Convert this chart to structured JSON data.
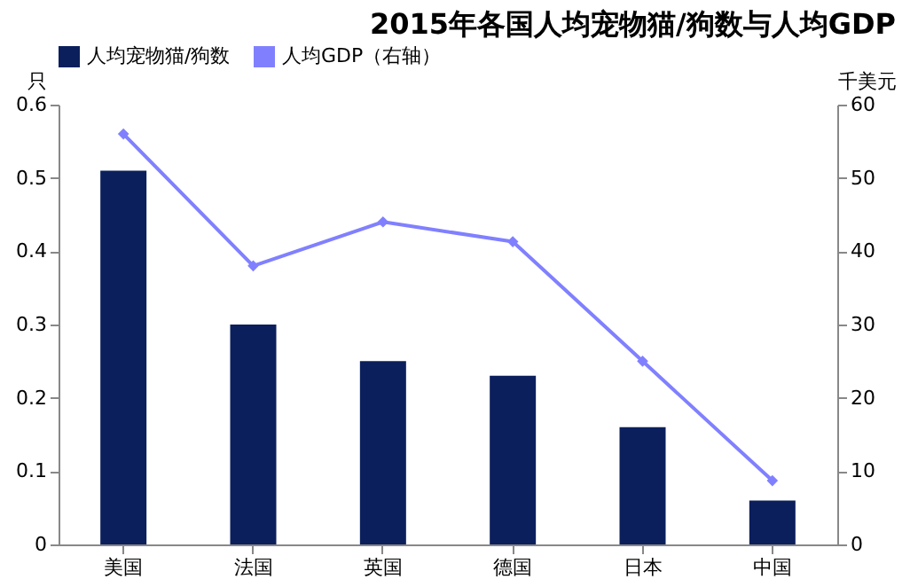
{
  "chart_data": {
    "type": "bar",
    "title": "2015年各国人均宠物猫/狗数与人均GDP",
    "ylabel": "只",
    "y2label": "千美元",
    "categories": [
      "美国",
      "法国",
      "英国",
      "德国",
      "日本",
      "中国"
    ],
    "series": [
      {
        "name": "人均宠物猫/狗数",
        "color": "#0b1f5c",
        "values": [
          0.51,
          0.3,
          0.25,
          0.23,
          0.16,
          0.06
        ]
      },
      {
        "name": "人均GDP（右轴）",
        "type": "line",
        "axis": "y2",
        "color": "#8080ff",
        "values": [
          56,
          38,
          44,
          41.3,
          25,
          8.7
        ]
      }
    ],
    "ylim": [
      0,
      0.6
    ],
    "yticks": [
      0,
      0.1,
      0.2,
      0.3,
      0.4,
      0.5,
      0.6
    ],
    "y2lim": [
      0,
      60
    ],
    "y2ticks": [
      0,
      10,
      20,
      30,
      40,
      50,
      60
    ],
    "grid": false,
    "legend": "top",
    "marker": "diamond"
  }
}
